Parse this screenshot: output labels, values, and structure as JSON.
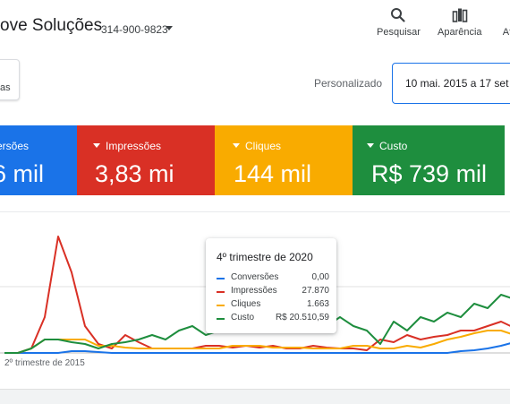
{
  "account": {
    "name": "ove Soluções",
    "id": "314-900-9823"
  },
  "toolbar": [
    {
      "label": "Pesquisar",
      "icon": "search-icon"
    },
    {
      "label": "Aparência",
      "icon": "appearance-icon"
    },
    {
      "label": "At",
      "icon": "tools-icon"
    }
  ],
  "filter_chip": {
    "label": "as"
  },
  "period": {
    "label": "Personalizado",
    "range": "10 mai. 2015 a 17 set"
  },
  "metrics": [
    {
      "label": "ersões",
      "value": "6 mil",
      "color": "#1a73e8"
    },
    {
      "label": "Impressões",
      "value": "3,83 mi",
      "color": "#d93025"
    },
    {
      "label": "Cliques",
      "value": "144 mil",
      "color": "#f9ab00"
    },
    {
      "label": "Custo",
      "value": "R$ 739 mil",
      "color": "#1e8e3e"
    }
  ],
  "chart_data": {
    "type": "line",
    "xlabel_first": "2º trimestre de 2015",
    "x": [
      0,
      1,
      2,
      3,
      4,
      5,
      6,
      7,
      8,
      9,
      10,
      11,
      12,
      13,
      14,
      15,
      16,
      17,
      18,
      19,
      20,
      21,
      22,
      23,
      24,
      25,
      26,
      27,
      28,
      29,
      30,
      31,
      32,
      33,
      34,
      35,
      36,
      37,
      38
    ],
    "series": [
      {
        "name": "Conversões",
        "color": "#1a73e8",
        "values": [
          0,
          0,
          0,
          0,
          0,
          2,
          2,
          1,
          0,
          0,
          0,
          0,
          0,
          0,
          0,
          0,
          0,
          0,
          0,
          0,
          0,
          0,
          0,
          0,
          0,
          0,
          0,
          0,
          0,
          0,
          0,
          0,
          0,
          0,
          2,
          3,
          5,
          8,
          12
        ]
      },
      {
        "name": "Impressões",
        "color": "#d93025",
        "values": [
          0,
          0,
          5,
          40,
          130,
          90,
          30,
          10,
          5,
          20,
          12,
          5,
          5,
          5,
          5,
          8,
          8,
          6,
          8,
          6,
          8,
          5,
          5,
          8,
          6,
          5,
          5,
          3,
          15,
          12,
          20,
          15,
          18,
          20,
          25,
          25,
          30,
          35,
          28
        ]
      },
      {
        "name": "Cliques",
        "color": "#f9ab00",
        "values": [
          0,
          0,
          5,
          15,
          15,
          15,
          15,
          8,
          8,
          6,
          5,
          5,
          5,
          5,
          5,
          5,
          5,
          8,
          8,
          8,
          6,
          6,
          6,
          5,
          5,
          5,
          8,
          8,
          5,
          5,
          8,
          6,
          10,
          15,
          18,
          22,
          25,
          25,
          20
        ]
      },
      {
        "name": "Custo",
        "color": "#1e8e3e",
        "values": [
          0,
          0,
          5,
          15,
          15,
          12,
          10,
          5,
          10,
          12,
          15,
          20,
          15,
          25,
          30,
          20,
          25,
          30,
          35,
          35,
          30,
          35,
          40,
          35,
          30,
          40,
          30,
          25,
          10,
          35,
          25,
          40,
          35,
          45,
          40,
          55,
          50,
          65,
          60
        ]
      }
    ]
  },
  "tooltip": {
    "title": "4º trimestre de 2020",
    "rows": [
      {
        "name": "Conversões",
        "value": "0,00",
        "color": "#1a73e8"
      },
      {
        "name": "Impressões",
        "value": "27.870",
        "color": "#d93025"
      },
      {
        "name": "Cliques",
        "value": "1.663",
        "color": "#f9ab00"
      },
      {
        "name": "Custo",
        "value": "R$ 20.510,59",
        "color": "#1e8e3e"
      }
    ]
  }
}
